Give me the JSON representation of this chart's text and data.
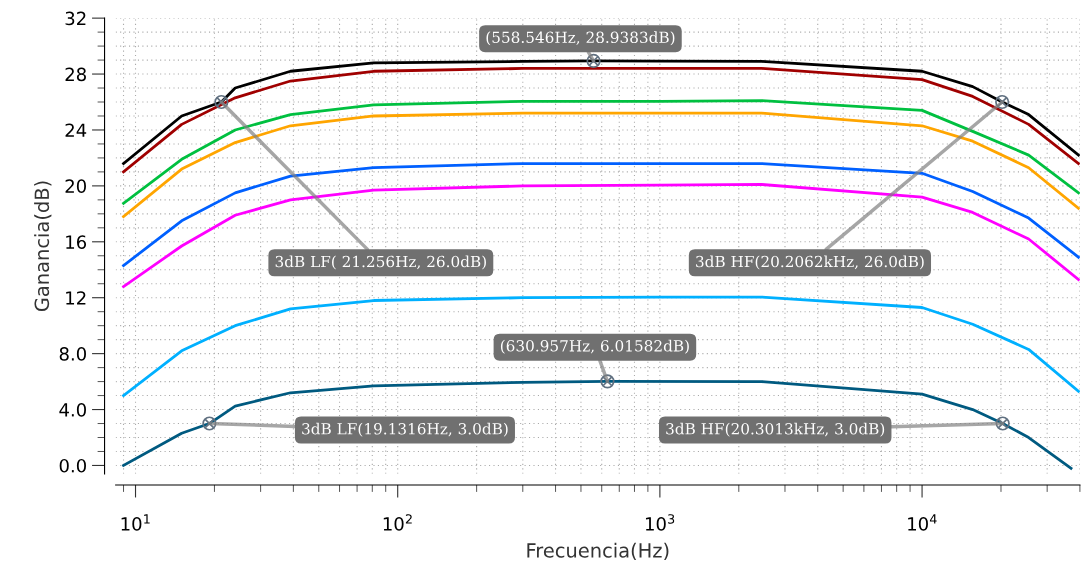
{
  "chart_data": {
    "type": "line",
    "xlabel": "Frecuencia(Hz)",
    "ylabel": "Ganancia(dB)",
    "log": "x",
    "x": [
      9,
      15,
      24,
      39,
      81,
      300,
      1000,
      2450,
      10000,
      15600,
      25500,
      39500
    ],
    "series": [
      {
        "color": "#000000",
        "x": [
          9,
          15,
          21.256,
          24,
          39,
          81,
          300,
          558.546,
          1000,
          2450,
          10000,
          15600,
          20206.2,
          25500,
          39500
        ],
        "values": [
          21.6,
          25.0,
          26.0,
          27.0,
          28.2,
          28.8,
          28.9,
          28.94,
          28.93,
          28.9,
          28.2,
          27.1,
          26.0,
          25.1,
          22.2
        ]
      },
      {
        "color": "#a00000",
        "values": [
          21.0,
          24.4,
          26.3,
          27.5,
          28.2,
          28.4,
          28.4,
          28.4,
          27.6,
          26.4,
          24.4,
          21.6
        ]
      },
      {
        "color": "#00c040",
        "values": [
          18.75,
          21.9,
          24.0,
          25.1,
          25.8,
          26.05,
          26.05,
          26.1,
          25.4,
          23.9,
          22.2,
          19.5
        ]
      },
      {
        "color": "#ffa500",
        "values": [
          17.8,
          21.2,
          23.1,
          24.3,
          25.0,
          25.2,
          25.2,
          25.2,
          24.3,
          23.2,
          21.3,
          18.4
        ]
      },
      {
        "color": "#0060ff",
        "values": [
          14.3,
          17.5,
          19.5,
          20.7,
          21.3,
          21.6,
          21.6,
          21.6,
          20.9,
          19.6,
          17.7,
          14.9
        ]
      },
      {
        "color": "#ff00ff",
        "values": [
          12.8,
          15.7,
          17.9,
          19.0,
          19.7,
          20.0,
          20.05,
          20.1,
          19.2,
          18.1,
          16.2,
          13.3
        ]
      },
      {
        "color": "#00b0ff",
        "values": [
          5.0,
          8.2,
          10.0,
          11.2,
          11.8,
          12.0,
          12.05,
          12.05,
          11.3,
          10.1,
          8.3,
          5.3
        ]
      },
      {
        "color": "#005a80",
        "x": [
          9,
          15,
          19.1316,
          24,
          39,
          81,
          300,
          630.957,
          2450,
          10000,
          15600,
          20301.3,
          25500,
          37000
        ],
        "values": [
          0.0,
          2.3,
          3.0,
          4.25,
          5.2,
          5.7,
          5.95,
          6.01582,
          6.0,
          5.1,
          4.0,
          3.0,
          2.0,
          -0.2
        ]
      }
    ],
    "xlim": [
      8.4,
      40000
    ],
    "ylim": [
      -0.6,
      32
    ],
    "xticks": [
      {
        "value": 10,
        "label": "10$^{1}$"
      },
      {
        "value": 100,
        "label": "10$^{2}$"
      },
      {
        "value": 1000,
        "label": "10$^{3}$"
      },
      {
        "value": 10000,
        "label": "10$^{4}$"
      }
    ],
    "yticks": [
      {
        "value": 0,
        "label": "0.0"
      },
      {
        "value": 4,
        "label": "4.0"
      },
      {
        "value": 8,
        "label": "8.0"
      },
      12,
      16,
      20,
      24,
      28,
      32
    ],
    "grid": true,
    "marker": "none",
    "line_style": "solid",
    "annotations": [
      {
        "text": "(558.546Hz, 28.9383dB)",
        "x": 558.546,
        "y": 28.9383
      },
      {
        "text": "3dB LF( 21.256Hz, 26.0dB)",
        "x": 21.256,
        "y": 26.0
      },
      {
        "text": "3dB HF(20.2062kHz, 26.0dB)",
        "x": 20206.2,
        "y": 26.0
      },
      {
        "text": "(630.957Hz, 6.01582dB)",
        "x": 630.957,
        "y": 6.01582
      },
      {
        "text": "3dB LF(19.1316Hz, 3.0dB)",
        "x": 19.1316,
        "y": 3.0
      },
      {
        "text": "3dB HF(20.3013kHz, 3.0dB)",
        "x": 20301.3,
        "y": 3.0
      }
    ]
  }
}
